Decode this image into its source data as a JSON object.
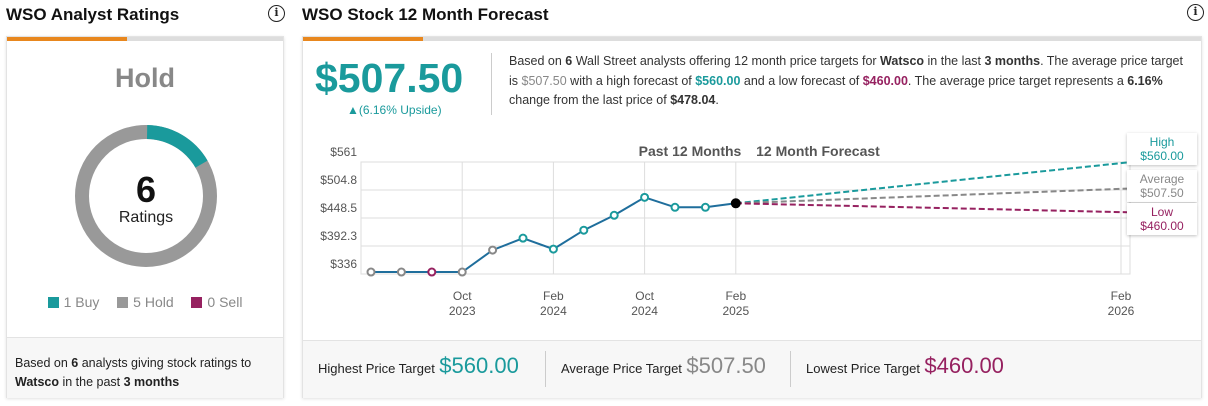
{
  "ratings": {
    "title": "WSO Analyst Ratings",
    "consensus": "Hold",
    "count": "6",
    "count_label": "Ratings",
    "legend": [
      {
        "label": "1 Buy",
        "color": "#1a9a9c"
      },
      {
        "label": "5 Hold",
        "color": "#999999"
      },
      {
        "label": "0 Sell",
        "color": "#962160"
      }
    ],
    "footer": {
      "p1": "Based on ",
      "n": "6",
      "p2": " analysts giving stock ratings to ",
      "company": "Watsco",
      "p3": "  in the past ",
      "months": "3 months"
    }
  },
  "forecast": {
    "title": "WSO Stock 12 Month Forecast",
    "price": "$507.50",
    "upside": "▲(6.16% Upside)",
    "desc": {
      "a": "Based on ",
      "b": "6",
      "c": " Wall Street analysts offering 12 month price targets for ",
      "d": "Watsco",
      "e": " in the last ",
      "f": "3 months",
      "g": ". The average price target is ",
      "h": "$507.50",
      "i": " with a high forecast of ",
      "j": "$560.00",
      "k": " and a low forecast of ",
      "l": "$460.00",
      "m": ". The average price target represents a ",
      "n": "6.16%",
      "o": " change from the last price of ",
      "p": "$478.04",
      "q": "."
    },
    "tips": {
      "high_label": "High",
      "high": "$560.00",
      "avg_label": "Average",
      "avg": "$507.50",
      "low_label": "Low",
      "low": "$460.00"
    },
    "bottom": {
      "high_label": "Highest Price Target",
      "high": "$560.00",
      "avg_label": "Average Price Target",
      "avg": "$507.50",
      "low_label": "Lowest Price Target",
      "low": "$460.00"
    }
  },
  "chart_data": {
    "type": "line",
    "title_past": "Past 12 Months",
    "title_forecast": "12 Month Forecast",
    "yticks": [
      "$561",
      "$504.8",
      "$448.5",
      "$392.3",
      "$336"
    ],
    "ylim": [
      336,
      561
    ],
    "xticks": [
      {
        "m": "Oct",
        "y": "2023",
        "i": 3
      },
      {
        "m": "Feb",
        "y": "2024",
        "i": 6
      },
      {
        "m": "Oct",
        "y": "2024",
        "i": 9
      },
      {
        "m": "Feb",
        "y": "2025",
        "i": 12
      },
      {
        "m": "Feb",
        "y": "2026",
        "i": 24.7
      }
    ],
    "values": [
      340,
      340,
      340,
      340,
      384,
      408,
      386,
      424,
      454,
      490,
      470,
      470,
      478.04
    ],
    "point_colors": [
      "#888",
      "#888",
      "#962160",
      "#888",
      "#888",
      "#1a9a9c",
      "#1a9a9c",
      "#1a9a9c",
      "#1a9a9c",
      "#1a9a9c",
      "#1a9a9c",
      "#1a9a9c",
      "#000"
    ],
    "forecast": {
      "high": 560,
      "average": 507.5,
      "low": 460
    },
    "colors": {
      "line": "#1f6e9c",
      "high": "#1a9a9c",
      "average": "#888888",
      "low": "#962160"
    }
  }
}
